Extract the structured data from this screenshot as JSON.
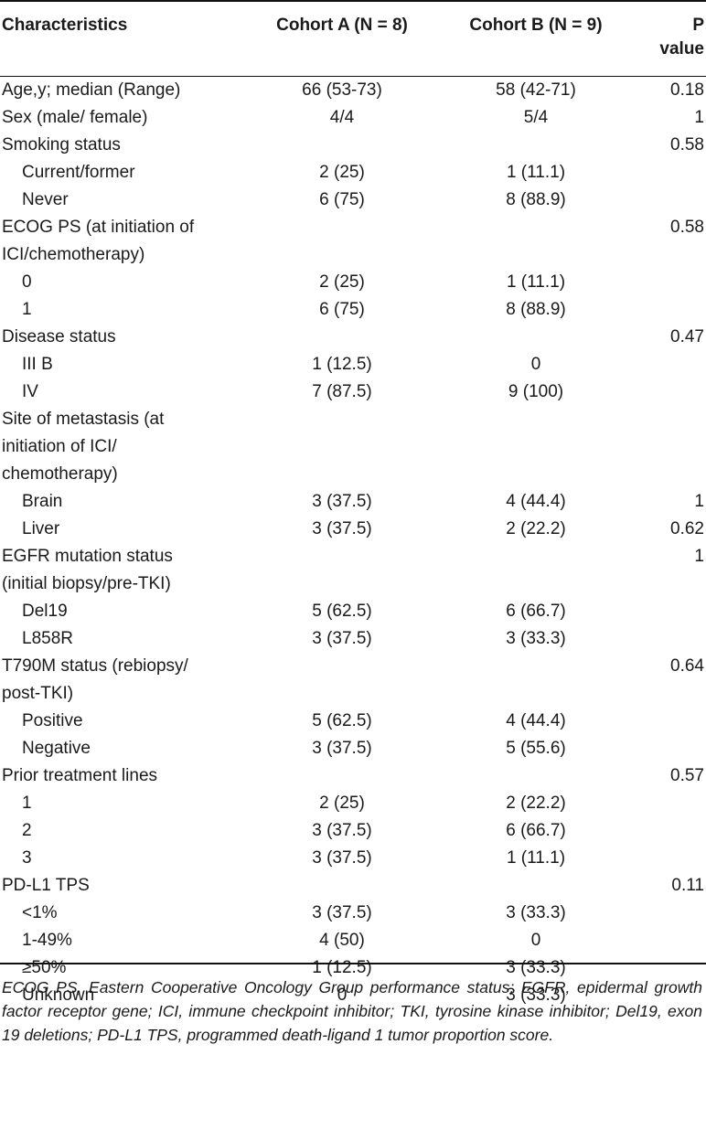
{
  "header": {
    "characteristics": "Characteristics",
    "cohort_a": "Cohort A (N = 8)",
    "cohort_b": "Cohort B (N = 9)",
    "p_value_line1": "P",
    "p_value_line2": "value"
  },
  "rows": [
    {
      "label": "Age,y; median (Range)",
      "a": "66 (53-73)",
      "b": "58 (42-71)",
      "p": "0.18"
    },
    {
      "label": "Sex (male/ female)",
      "a": "4/4",
      "b": "5/4",
      "p": "1"
    },
    {
      "label": "Smoking status",
      "a": "",
      "b": "",
      "p": "0.58"
    },
    {
      "label": "Current/former",
      "a": "2 (25)",
      "b": "1 (11.1)",
      "p": ""
    },
    {
      "label": "Never",
      "a": "6 (75)",
      "b": "8 (88.9)",
      "p": ""
    },
    {
      "label": "ECOG PS (at initiation of",
      "a": "",
      "b": "",
      "p": "0.58"
    },
    {
      "label": "ICI/chemotherapy)",
      "a": "",
      "b": "",
      "p": ""
    },
    {
      "label": "0",
      "a": "2 (25)",
      "b": "1 (11.1)",
      "p": ""
    },
    {
      "label": "1",
      "a": "6 (75)",
      "b": "8 (88.9)",
      "p": ""
    },
    {
      "label": "Disease status",
      "a": "",
      "b": "",
      "p": "0.47"
    },
    {
      "label": "III B",
      "a": "1 (12.5)",
      "b": "0",
      "p": ""
    },
    {
      "label": "IV",
      "a": "7 (87.5)",
      "b": "9 (100)",
      "p": ""
    },
    {
      "label": "Site of metastasis (at",
      "a": "",
      "b": "",
      "p": ""
    },
    {
      "label": "initiation of ICI/",
      "a": "",
      "b": "",
      "p": ""
    },
    {
      "label": "chemotherapy)",
      "a": "",
      "b": "",
      "p": ""
    },
    {
      "label": "Brain",
      "a": "3 (37.5)",
      "b": "4 (44.4)",
      "p": "1"
    },
    {
      "label": "Liver",
      "a": "3 (37.5)",
      "b": "2 (22.2)",
      "p": "0.62"
    },
    {
      "label": "EGFR mutation status",
      "a": "",
      "b": "",
      "p": "1"
    },
    {
      "label": "(initial biopsy/pre-TKI)",
      "a": "",
      "b": "",
      "p": ""
    },
    {
      "label": "Del19",
      "a": "5 (62.5)",
      "b": "6 (66.7)",
      "p": ""
    },
    {
      "label": "L858R",
      "a": "3 (37.5)",
      "b": "3 (33.3)",
      "p": ""
    },
    {
      "label": "T790M status (rebiopsy/",
      "a": "",
      "b": "",
      "p": "0.64"
    },
    {
      "label": "post-TKI)",
      "a": "",
      "b": "",
      "p": ""
    },
    {
      "label": "Positive",
      "a": "5 (62.5)",
      "b": "4 (44.4)",
      "p": ""
    },
    {
      "label": "Negative",
      "a": "3 (37.5)",
      "b": "5 (55.6)",
      "p": ""
    },
    {
      "label": "Prior treatment lines",
      "a": "",
      "b": "",
      "p": "0.57"
    },
    {
      "label": "1",
      "a": "2 (25)",
      "b": "2 (22.2)",
      "p": ""
    },
    {
      "label": "2",
      "a": "3 (37.5)",
      "b": "6 (66.7)",
      "p": ""
    },
    {
      "label": "3",
      "a": "3 (37.5)",
      "b": "1 (11.1)",
      "p": ""
    },
    {
      "label": "PD-L1 TPS",
      "a": "",
      "b": "",
      "p": "0.11"
    },
    {
      "label": "<1%",
      "a": "3 (37.5)",
      "b": "3 (33.3)",
      "p": ""
    },
    {
      "label": "1-49%",
      "a": "4 (50)",
      "b": "0",
      "p": ""
    },
    {
      "label": "≥50%",
      "a": "1 (12.5)",
      "b": "3 (33.3)",
      "p": ""
    },
    {
      "label": "Unknown",
      "a": "0",
      "b": "3 (33.3)",
      "p": ""
    }
  ],
  "footnote": "ECOG PS, Eastern Cooperative Oncology Group performance status; EGFR, epidermal growth factor receptor gene; ICI, immune checkpoint inhibitor; TKI, tyrosine kinase inhibitor; Del19, exon 19 deletions; PD-L1 TPS, programmed death-ligand 1 tumor proportion score."
}
